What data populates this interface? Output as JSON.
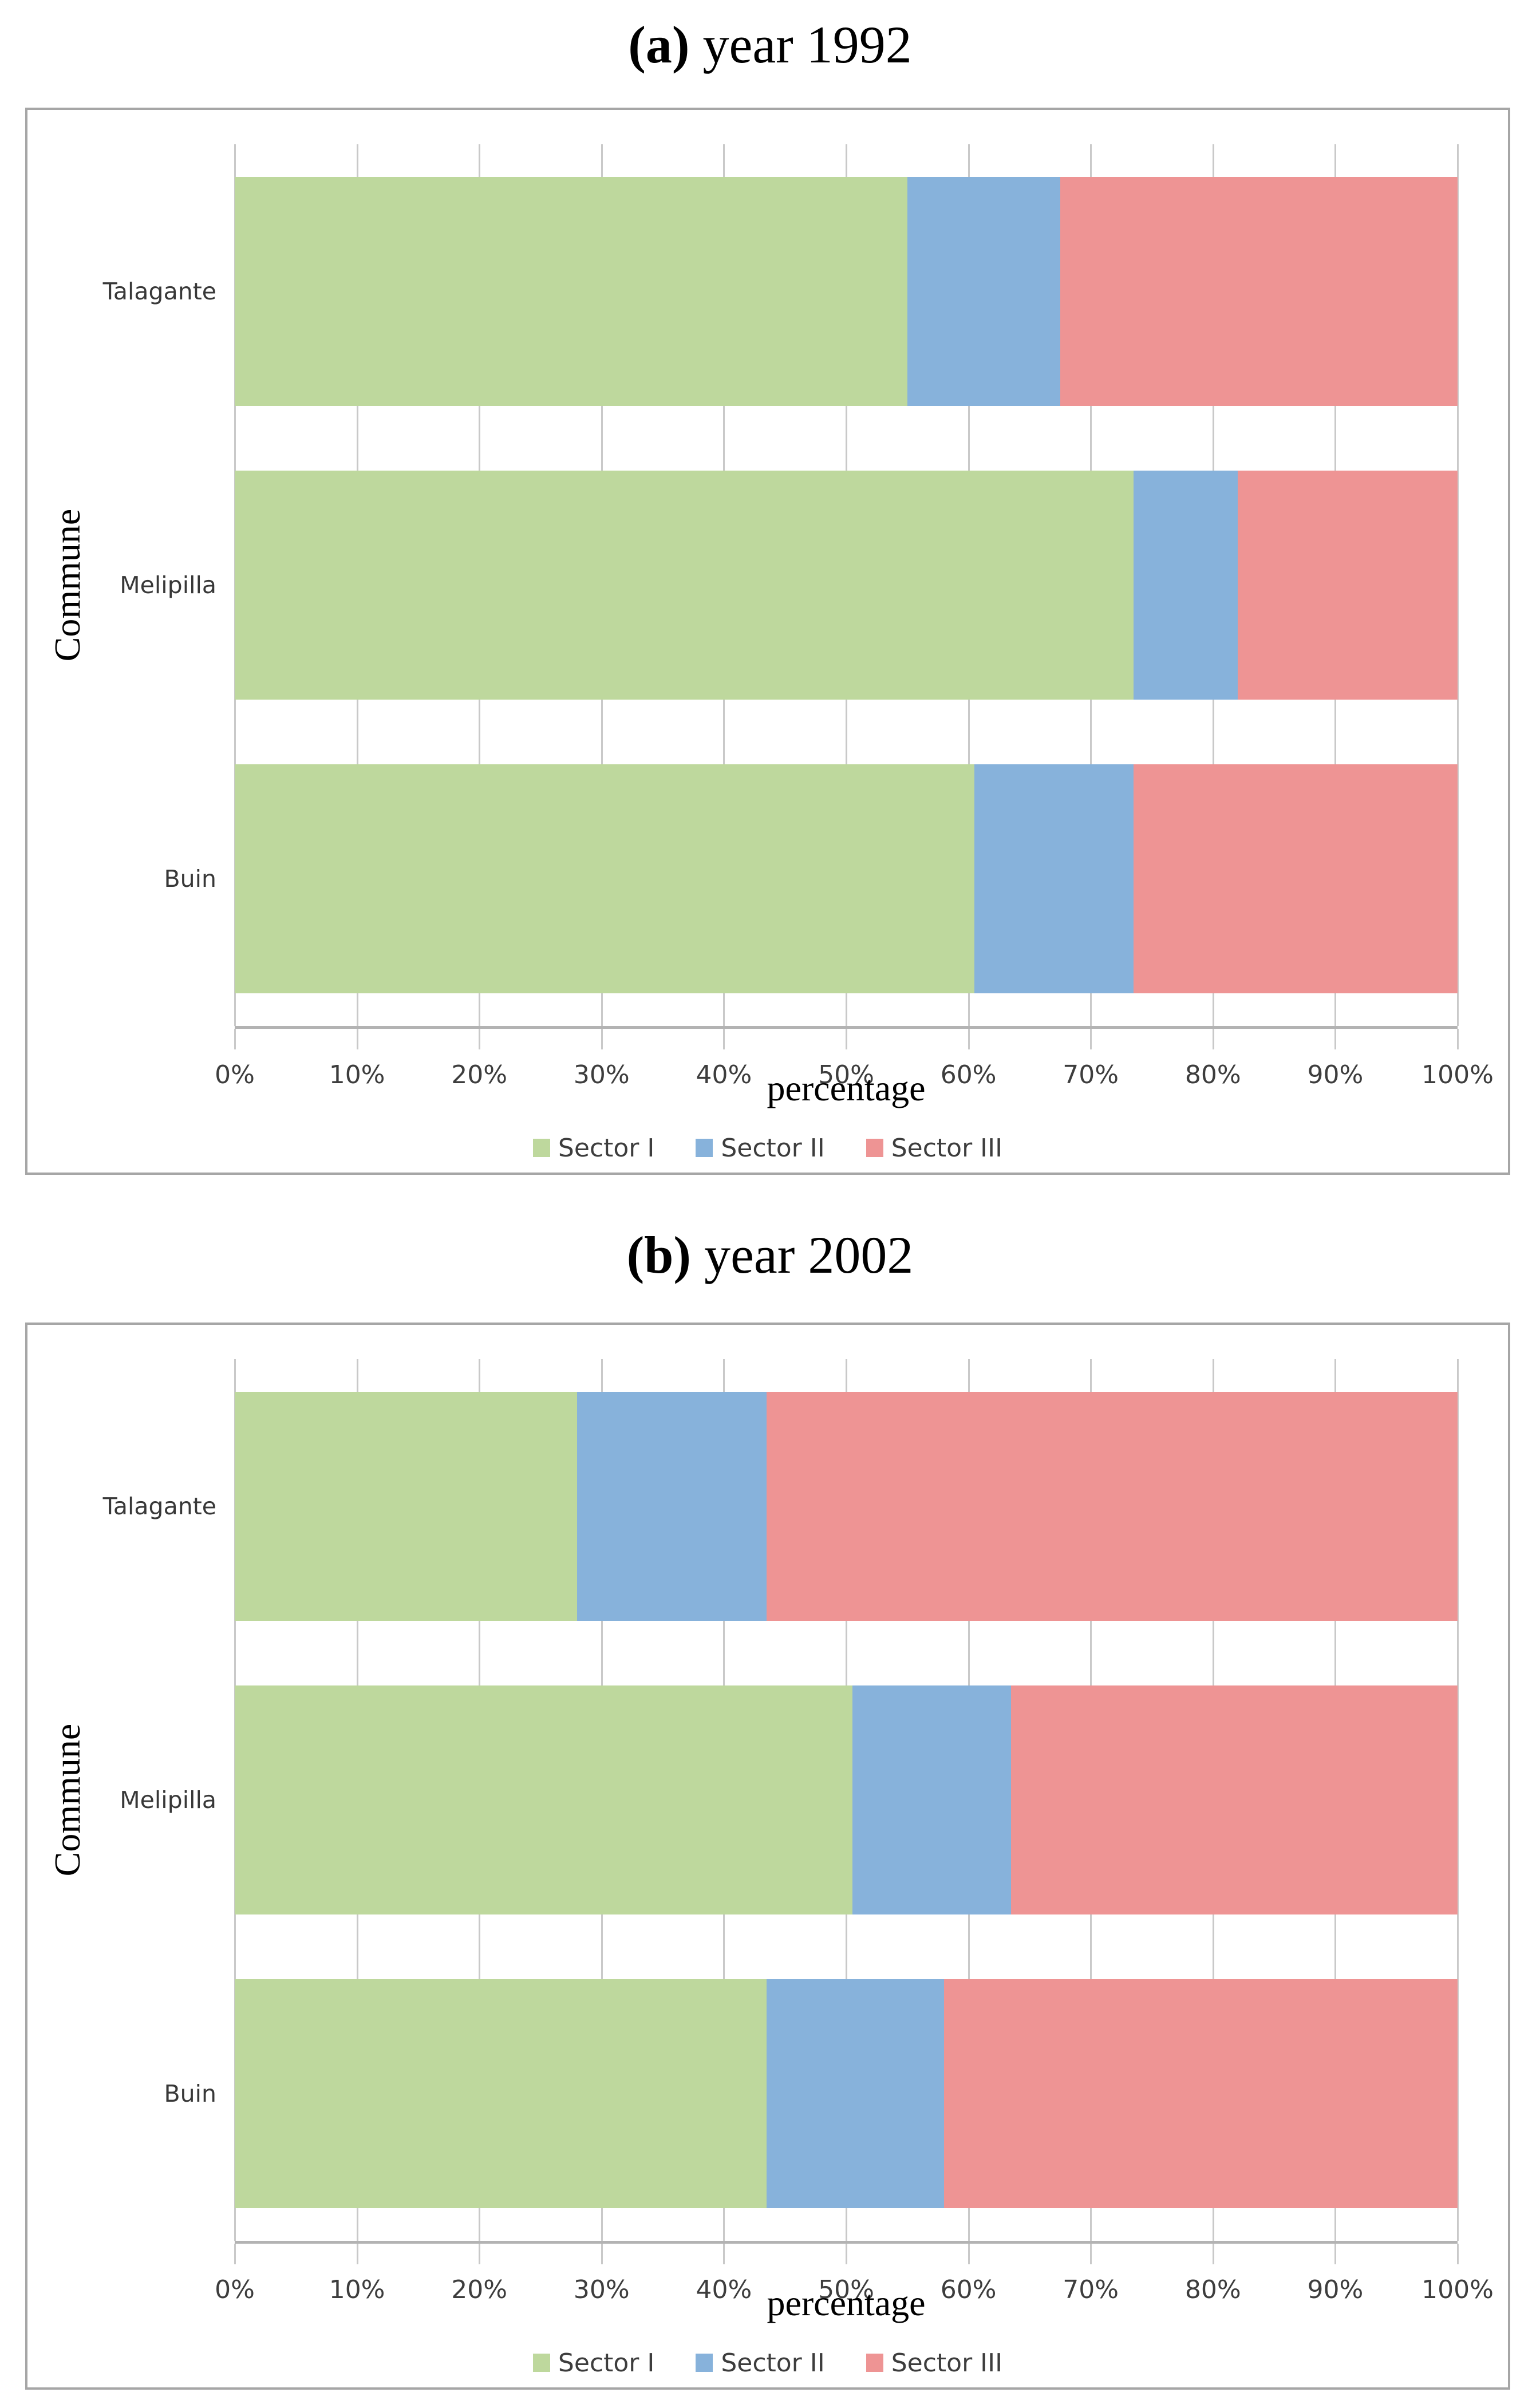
{
  "colors": {
    "sector1": "#bed89d",
    "sector2": "#87b2db",
    "sector3": "#ee9494",
    "gridline": "#c9c9c9",
    "axis_line": "#b3b3b3",
    "panel_border": "#a6a6a6",
    "tick_text": "#3d3d3d"
  },
  "chart_data": [
    {
      "type": "bar",
      "orientation": "horizontal",
      "stacked": true,
      "title": "(a) year 1992",
      "title_tag": "(a)",
      "title_text": "year 1992",
      "ylabel": "Commune",
      "xlabel": "percentage",
      "categories": [
        "Talagante",
        "Melipilla",
        "Buin"
      ],
      "series": [
        {
          "name": "Sector I",
          "color": "#bed89d",
          "values": [
            55.0,
            73.5,
            60.5
          ]
        },
        {
          "name": "Sector II",
          "color": "#87b2db",
          "values": [
            12.5,
            8.5,
            13.0
          ]
        },
        {
          "name": "Sector III",
          "color": "#ee9494",
          "values": [
            32.5,
            18.0,
            26.5
          ]
        }
      ],
      "xlim": [
        0,
        100
      ],
      "x_tick_labels": [
        "0%",
        "10%",
        "20%",
        "30%",
        "40%",
        "50%",
        "60%",
        "70%",
        "80%",
        "90%",
        "100%"
      ],
      "legend": [
        "Sector I",
        "Sector II",
        "Sector III"
      ],
      "legend_position": "bottom",
      "grid": true
    },
    {
      "type": "bar",
      "orientation": "horizontal",
      "stacked": true,
      "title": "(b) year 2002",
      "title_tag": "(b)",
      "title_text": "year 2002",
      "ylabel": "Commune",
      "xlabel": "percentage",
      "categories": [
        "Talagante",
        "Melipilla",
        "Buin"
      ],
      "series": [
        {
          "name": "Sector I",
          "color": "#bed89d",
          "values": [
            28.0,
            50.5,
            43.5
          ]
        },
        {
          "name": "Sector II",
          "color": "#87b2db",
          "values": [
            15.5,
            13.0,
            14.5
          ]
        },
        {
          "name": "Sector III",
          "color": "#ee9494",
          "values": [
            56.5,
            36.5,
            42.0
          ]
        }
      ],
      "xlim": [
        0,
        100
      ],
      "x_tick_labels": [
        "0%",
        "10%",
        "20%",
        "30%",
        "40%",
        "50%",
        "60%",
        "70%",
        "80%",
        "90%",
        "100%"
      ],
      "legend": [
        "Sector I",
        "Sector II",
        "Sector III"
      ],
      "legend_position": "bottom",
      "grid": true
    }
  ]
}
